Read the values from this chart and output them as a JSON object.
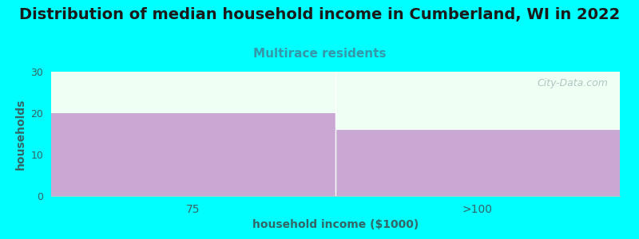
{
  "title": "Distribution of median household income in Cumberland, WI in 2022",
  "subtitle": "Multirace residents",
  "categories": [
    "75",
    ">100"
  ],
  "values": [
    20,
    16
  ],
  "bar_color": "#c9a8d4",
  "background_color": "#00ffff",
  "plot_bg_color": "#f0fff4",
  "xlabel": "household income ($1000)",
  "ylabel": "households",
  "ylim": [
    0,
    30
  ],
  "yticks": [
    0,
    10,
    20,
    30
  ],
  "title_fontsize": 14,
  "subtitle_fontsize": 11,
  "subtitle_color": "#3399aa",
  "axis_label_fontsize": 10,
  "tick_label_color": "#336666",
  "watermark": "City-Data.com"
}
